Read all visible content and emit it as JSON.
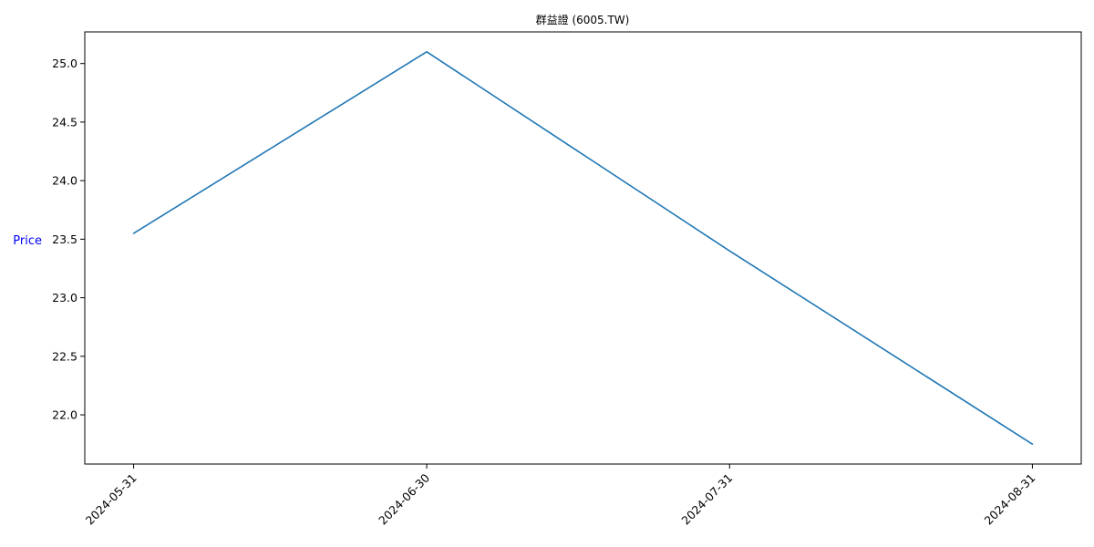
{
  "chart_data": {
    "type": "line",
    "title": "群益證 (6005.TW)",
    "xlabel": "",
    "ylabel": "Price",
    "ylabel_color": "#0000ff",
    "x": [
      "2024-05-31",
      "2024-06-30",
      "2024-07-31",
      "2024-08-31"
    ],
    "series": [
      {
        "color": "#1f77b4",
        "values": [
          23.55,
          25.1,
          23.4,
          21.75
        ]
      }
    ],
    "yticks": [
      "22.0",
      "22.5",
      "23.0",
      "23.5",
      "24.0",
      "24.5",
      "25.0"
    ],
    "xticks": [
      "2024-05-31",
      "2024-06-30",
      "2024-07-31",
      "2024-08-31"
    ],
    "ylim": [
      21.58,
      25.27
    ],
    "xlim": [
      "2024-05-26",
      "2024-09-05"
    ],
    "grid": false
  }
}
